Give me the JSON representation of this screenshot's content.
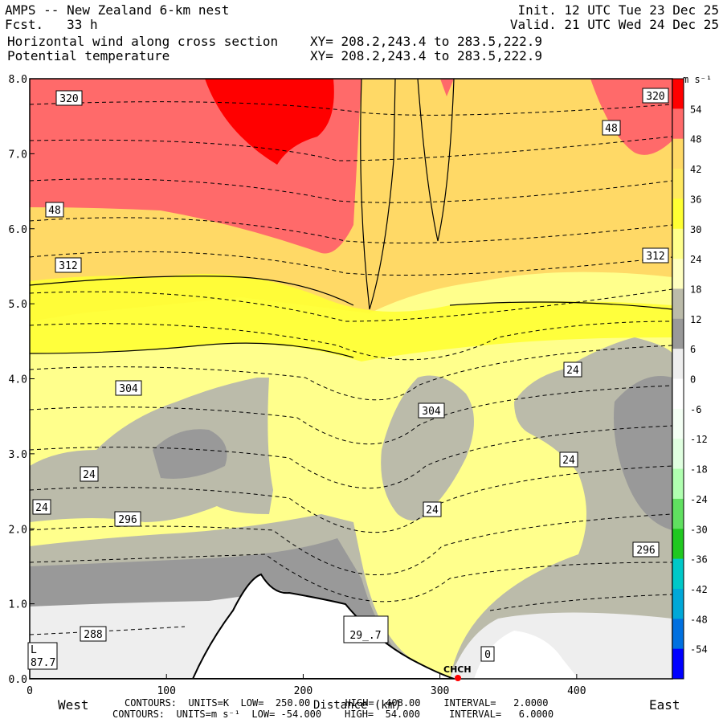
{
  "header": {
    "title": "AMPS -- New Zealand 6-km nest",
    "fcst_label": "Fcst.",
    "fcst_value": "33 h",
    "line3": "Horizontal wind along cross section",
    "line4": "Potential temperature",
    "init": "Init. 12 UTC Tue 23 Dec 25",
    "valid": "Valid. 21 UTC Wed 24 Dec 25",
    "xy1": "XY= 208.2,243.4 to 283.5,222.9",
    "xy2": "XY= 208.2,243.4 to 283.5,222.9"
  },
  "chart_data": {
    "type": "heatmap",
    "x_ticks": [
      "0",
      "100",
      "200",
      "300",
      "400"
    ],
    "y_ticks": [
      "0.0",
      "1.0",
      "2.0",
      "3.0",
      "4.0",
      "5.0",
      "6.0",
      "7.0",
      "8.0"
    ],
    "xlabel": "Distance (km)",
    "x_left_label": "West",
    "x_right_label": "East",
    "xlim": [
      0,
      470
    ],
    "ylim": [
      0,
      8
    ],
    "colorbar_unit": "m s⁻¹",
    "colorbar_levels": [
      "54",
      "48",
      "42",
      "36",
      "30",
      "24",
      "18",
      "12",
      "6",
      "0",
      "-6",
      "-12",
      "-18",
      "-24",
      "-30",
      "-36",
      "-42",
      "-48",
      "-54"
    ],
    "colorbar_colors": [
      "#ff0000",
      "#ff6a6a",
      "#ffd966",
      "#ffe860",
      "#ffff33",
      "#ffff8c",
      "#ffffc0",
      "#bbbbaa",
      "#999999",
      "#eeeeee",
      "#ffffff",
      "#f4fff4",
      "#e0ffe0",
      "#b0ffb0",
      "#60e060",
      "#20c820",
      "#00c8c8",
      "#00a8d8",
      "#0070e0",
      "#0000ff"
    ],
    "theta_labels": [
      "320",
      "312",
      "304",
      "296",
      "288",
      "29_.7",
      "304"
    ],
    "wind_labels": [
      "48",
      "48",
      "24",
      "24",
      "24",
      "24",
      "24",
      "0"
    ],
    "station": "CHCH",
    "low_box": [
      "L",
      "87.7"
    ],
    "footer": [
      {
        "label": "CONTOURS:",
        "units": "UNITS=K",
        "low": "LOW=  250.00",
        "high": "HIGH=  408.00",
        "interval": "INTERVAL=   2.0000"
      },
      {
        "label": "CONTOURS:",
        "units": "UNITS=m s⁻¹",
        "low": "LOW= -54.000",
        "high": "HIGH=  54.000",
        "interval": "INTERVAL=   6.0000"
      }
    ]
  }
}
